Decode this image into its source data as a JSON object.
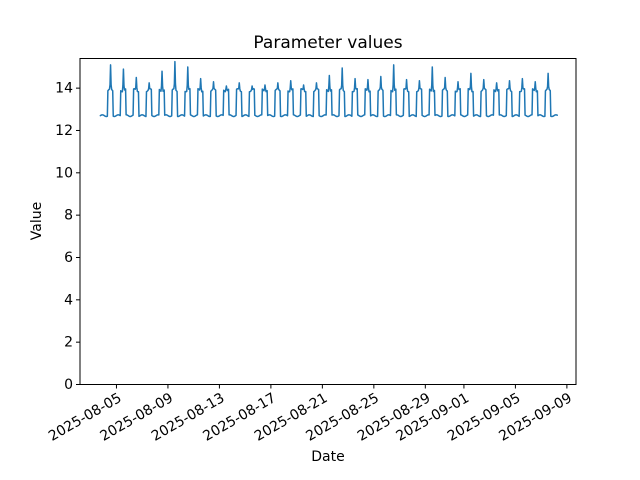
{
  "figure": {
    "background": "#ffffff",
    "text_color": "#000000",
    "spine_color": "#000000"
  },
  "chart_data": {
    "type": "line",
    "title": "Parameter values",
    "xlabel": "Date",
    "ylabel": "Value",
    "line_color": "#1f77b4",
    "line_width": 1.5,
    "grid": false,
    "legend": null,
    "ylim": [
      0,
      15.4
    ],
    "yticks": [
      0,
      2,
      4,
      6,
      8,
      10,
      12,
      14
    ],
    "xlim": [
      "2025-08-02T04:00:00Z",
      "2025-09-09T17:00:00Z"
    ],
    "xticks": [
      {
        "t": "2025-08-05T00:00:00Z",
        "label": "2025-08-05"
      },
      {
        "t": "2025-08-09T00:00:00Z",
        "label": "2025-08-09"
      },
      {
        "t": "2025-08-13T00:00:00Z",
        "label": "2025-08-13"
      },
      {
        "t": "2025-08-17T00:00:00Z",
        "label": "2025-08-17"
      },
      {
        "t": "2025-08-21T00:00:00Z",
        "label": "2025-08-21"
      },
      {
        "t": "2025-08-25T00:00:00Z",
        "label": "2025-08-25"
      },
      {
        "t": "2025-08-29T00:00:00Z",
        "label": "2025-08-29"
      },
      {
        "t": "2025-09-01T00:00:00Z",
        "label": "2025-09-01"
      },
      {
        "t": "2025-09-05T00:00:00Z",
        "label": "2025-09-05"
      },
      {
        "t": "2025-09-09T00:00:00Z",
        "label": "2025-09-09"
      }
    ],
    "xtick_rotation": -30,
    "series": {
      "name": "Parameter values",
      "sampling": "hourly",
      "start": "2025-08-03T18:00:00Z",
      "end": "2025-09-08T06:00:00Z",
      "low_level": 12.7,
      "high_level": 13.9,
      "high_hours": [
        8,
        17
      ],
      "spike_hour": 13,
      "daily_peaks": {
        "2025-08-04": 15.1,
        "2025-08-05": 14.9,
        "2025-08-06": 14.5,
        "2025-08-07": 14.25,
        "2025-08-08": 14.8,
        "2025-08-09": 15.25,
        "2025-08-10": 15.0,
        "2025-08-11": 14.45,
        "2025-08-12": 14.3,
        "2025-08-13": 14.1,
        "2025-08-14": 14.25,
        "2025-08-15": 14.1,
        "2025-08-16": 14.15,
        "2025-08-17": 14.25,
        "2025-08-18": 14.35,
        "2025-08-19": 14.15,
        "2025-08-20": 14.25,
        "2025-08-21": 14.6,
        "2025-08-22": 14.95,
        "2025-08-23": 14.45,
        "2025-08-24": 14.4,
        "2025-08-25": 14.55,
        "2025-08-26": 15.1,
        "2025-08-27": 14.4,
        "2025-08-28": 14.35,
        "2025-08-29": 15.0,
        "2025-08-30": 14.5,
        "2025-08-31": 14.3,
        "2025-09-01": 14.7,
        "2025-09-02": 14.4,
        "2025-09-03": 14.25,
        "2025-09-04": 14.35,
        "2025-09-05": 14.45,
        "2025-09-06": 14.3,
        "2025-09-07": 14.7
      }
    }
  }
}
